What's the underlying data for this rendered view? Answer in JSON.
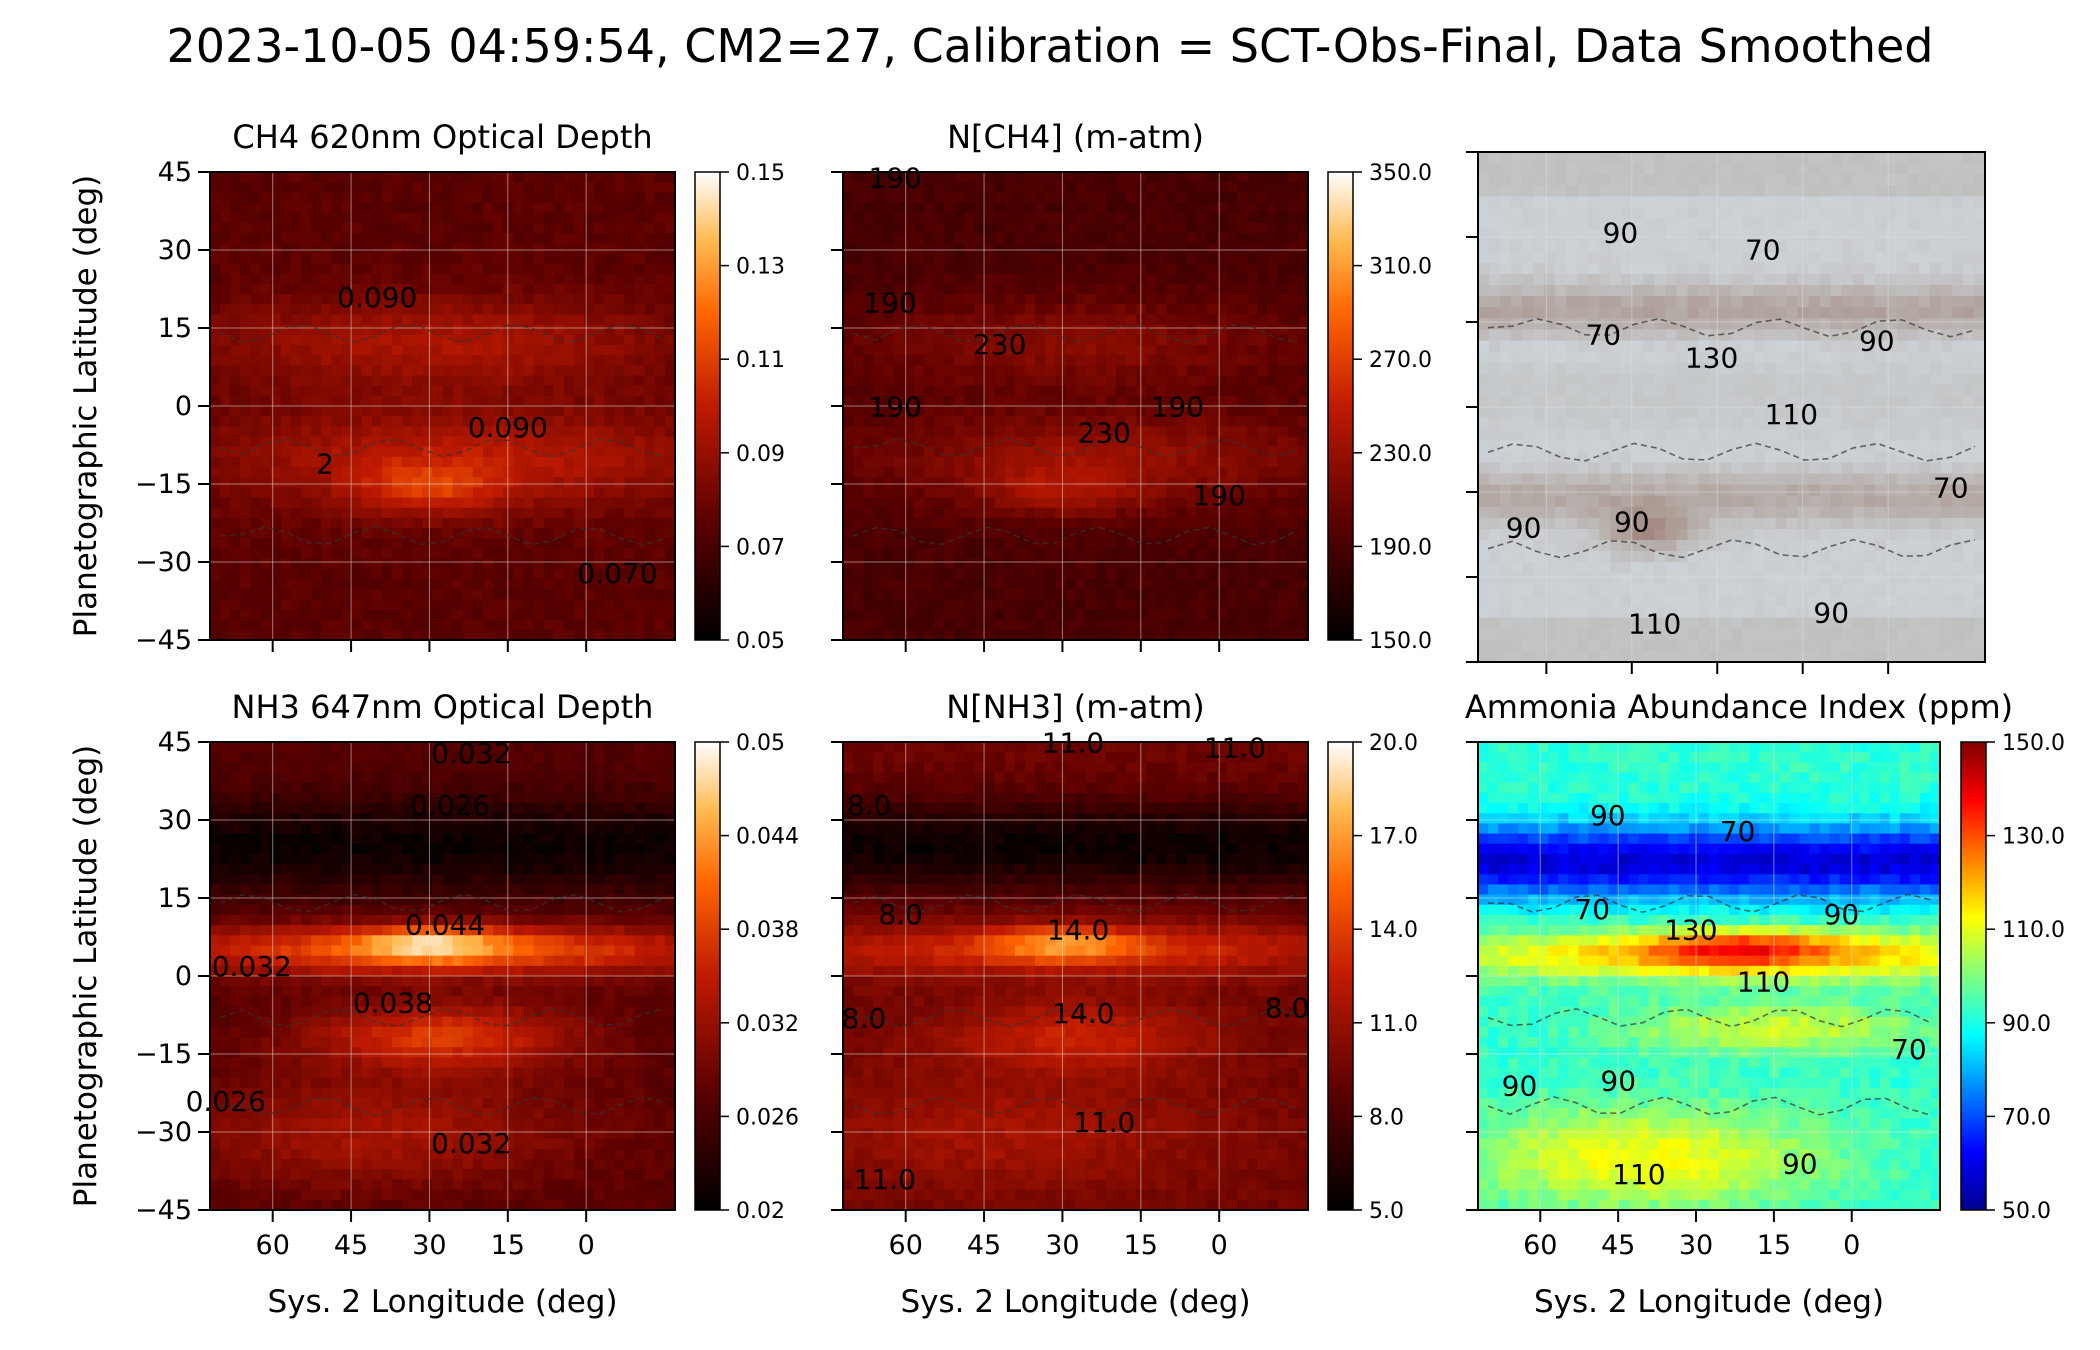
{
  "figure": {
    "title": "2023-10-05 04:59:54, CM2=27, Calibration = SCT-Obs-Final, Data Smoothed"
  },
  "chart_data": [
    {
      "type": "heatmap",
      "id": "ch4-od",
      "title": "CH4 620nm Optical Depth",
      "ylabel": "Planetographic Latitude (deg)",
      "xlabel": "",
      "x_ticks": [
        "60",
        "45",
        "30",
        "15",
        "0"
      ],
      "y_ticks": [
        "45",
        "30",
        "15",
        "0",
        "−15",
        "−30",
        "−45"
      ],
      "xlim": [
        72,
        -17
      ],
      "ylim": [
        -45,
        45
      ],
      "colormap": "gist_heat",
      "colorbar": {
        "min": 0.05,
        "max": 0.15,
        "ticks": [
          "0.15",
          "0.13",
          "0.11",
          "0.09",
          "0.07",
          "0.05"
        ]
      },
      "contour_labels": [
        {
          "text": "0.090",
          "lon": 40,
          "lat": 19
        },
        {
          "text": "0.090",
          "lon": 15,
          "lat": -6
        },
        {
          "text": "0.070",
          "lon": -6,
          "lat": -34
        },
        {
          "text": "2",
          "lon": 50,
          "lat": -13
        }
      ],
      "bands": [
        {
          "lat": 12,
          "width": 9,
          "lon_c": 28,
          "lon_w": 45,
          "val": 0.095
        },
        {
          "lat": -10,
          "width": 10,
          "lon_c": 22,
          "lon_w": 50,
          "val": 0.098
        },
        {
          "lat": -15,
          "width": 5,
          "lon_c": 30,
          "lon_w": 14,
          "val": 0.112
        }
      ],
      "base": 0.075
    },
    {
      "type": "heatmap",
      "id": "n-ch4",
      "title": "N[CH4] (m-atm)",
      "x_ticks": [
        "60",
        "45",
        "30",
        "15",
        "0"
      ],
      "xlim": [
        72,
        -17
      ],
      "ylim": [
        -45,
        45
      ],
      "colormap": "gist_heat",
      "colorbar": {
        "min": 150.0,
        "max": 350.0,
        "ticks": [
          "350.0",
          "310.0",
          "270.0",
          "230.0",
          "190.0",
          "150.0"
        ]
      },
      "contour_labels": [
        {
          "text": "190",
          "lon": 62,
          "lat": 42
        },
        {
          "text": "190",
          "lon": 63,
          "lat": 18
        },
        {
          "text": "230",
          "lon": 42,
          "lat": 10
        },
        {
          "text": "190",
          "lon": 62,
          "lat": -2
        },
        {
          "text": "230",
          "lon": 22,
          "lat": -7
        },
        {
          "text": "190",
          "lon": 8,
          "lat": -2
        },
        {
          "text": "190",
          "lon": 0,
          "lat": -19
        }
      ],
      "bands": [
        {
          "lat": 12,
          "width": 9,
          "lon_c": 28,
          "lon_w": 45,
          "val": 222
        },
        {
          "lat": -10,
          "width": 10,
          "lon_c": 22,
          "lon_w": 50,
          "val": 228
        },
        {
          "lat": -15,
          "width": 5,
          "lon_c": 30,
          "lon_w": 14,
          "val": 245
        }
      ],
      "base": 190
    },
    {
      "type": "image",
      "id": "rgb-context",
      "title": "",
      "contour_labels": [
        {
          "text": "90",
          "lon": 47,
          "lat": 29
        },
        {
          "text": "70",
          "lon": 22,
          "lat": 26
        },
        {
          "text": "70",
          "lon": 50,
          "lat": 11
        },
        {
          "text": "130",
          "lon": 31,
          "lat": 7
        },
        {
          "text": "90",
          "lon": 2,
          "lat": 10
        },
        {
          "text": "110",
          "lon": 17,
          "lat": -3
        },
        {
          "text": "70",
          "lon": -11,
          "lat": -16
        },
        {
          "text": "90",
          "lon": 64,
          "lat": -23
        },
        {
          "text": "90",
          "lon": 45,
          "lat": -22
        },
        {
          "text": "110",
          "lon": 41,
          "lat": -40
        },
        {
          "text": "90",
          "lon": 10,
          "lat": -38
        }
      ]
    },
    {
      "type": "heatmap",
      "id": "nh3-od",
      "title": "NH3 647nm Optical Depth",
      "ylabel": "Planetographic Latitude (deg)",
      "xlabel": "Sys. 2 Longitude (deg)",
      "x_ticks": [
        "60",
        "45",
        "30",
        "15",
        "0"
      ],
      "y_ticks": [
        "45",
        "30",
        "15",
        "0",
        "−15",
        "−30",
        "−45"
      ],
      "xlim": [
        72,
        -17
      ],
      "ylim": [
        -45,
        45
      ],
      "colormap": "gist_heat",
      "colorbar": {
        "min": 0.02,
        "max": 0.05,
        "ticks": [
          "0.05",
          "0.044",
          "0.038",
          "0.032",
          "0.026",
          "0.02"
        ]
      },
      "contour_labels": [
        {
          "text": "0.032",
          "lon": 22,
          "lat": 41
        },
        {
          "text": "0.026",
          "lon": 26,
          "lat": 31
        },
        {
          "text": "0.044",
          "lon": 27,
          "lat": 8
        },
        {
          "text": "0.032",
          "lon": 64,
          "lat": 0
        },
        {
          "text": "0.038",
          "lon": 37,
          "lat": -7
        },
        {
          "text": "0.026",
          "lon": 69,
          "lat": -26
        },
        {
          "text": "0.032",
          "lon": 22,
          "lat": -34
        }
      ],
      "bands": [
        {
          "lat": 5,
          "width": 5,
          "lon_c": 28,
          "lon_w": 60,
          "val": 0.04
        },
        {
          "lat": 6,
          "width": 3,
          "lon_c": 30,
          "lon_w": 14,
          "val": 0.049
        },
        {
          "lat": -12,
          "width": 7,
          "lon_c": 28,
          "lon_w": 25,
          "val": 0.038
        },
        {
          "lat": -30,
          "width": 11,
          "lon_c": 40,
          "lon_w": 40,
          "val": 0.033
        }
      ],
      "base": 0.027,
      "dark_band": {
        "lat": 25,
        "width": 9,
        "val": 0.021
      }
    },
    {
      "type": "heatmap",
      "id": "n-nh3",
      "title": "N[NH3] (m-atm)",
      "xlabel": "Sys. 2 Longitude (deg)",
      "x_ticks": [
        "60",
        "45",
        "30",
        "15",
        "0"
      ],
      "xlim": [
        72,
        -17
      ],
      "ylim": [
        -45,
        45
      ],
      "colormap": "gist_heat",
      "colorbar": {
        "min": 5.0,
        "max": 20.0,
        "ticks": [
          "20.0",
          "17.0",
          "14.0",
          "11.0",
          "8.0",
          "5.0"
        ]
      },
      "contour_labels": [
        {
          "text": "11.0",
          "lon": 28,
          "lat": 43
        },
        {
          "text": "11.0",
          "lon": -3,
          "lat": 42
        },
        {
          "text": "8.0",
          "lon": 67,
          "lat": 31
        },
        {
          "text": "8.0",
          "lon": 61,
          "lat": 10
        },
        {
          "text": "14.0",
          "lon": 27,
          "lat": 7
        },
        {
          "text": "8.0",
          "lon": 68,
          "lat": -10
        },
        {
          "text": "14.0",
          "lon": 26,
          "lat": -9
        },
        {
          "text": "11.0",
          "lon": 22,
          "lat": -30
        },
        {
          "text": "11.0",
          "lon": 64,
          "lat": -41
        },
        {
          "text": "8.0",
          "lon": -13,
          "lat": -8
        }
      ],
      "bands": [
        {
          "lat": 5,
          "width": 5,
          "lon_c": 28,
          "lon_w": 60,
          "val": 13.5
        },
        {
          "lat": 6,
          "width": 3,
          "lon_c": 30,
          "lon_w": 14,
          "val": 17.5
        },
        {
          "lat": -12,
          "width": 7,
          "lon_c": 28,
          "lon_w": 25,
          "val": 13.0
        },
        {
          "lat": -30,
          "width": 11,
          "lon_c": 40,
          "lon_w": 40,
          "val": 11.5
        }
      ],
      "base": 9.5,
      "dark_band": {
        "lat": 25,
        "width": 9,
        "val": 5.5
      }
    },
    {
      "type": "heatmap",
      "id": "ammonia-index",
      "title": "Ammonia Abundance Index (ppm)",
      "xlabel": "Sys. 2 Longitude (deg)",
      "x_ticks": [
        "60",
        "45",
        "30",
        "15",
        "0"
      ],
      "xlim": [
        72,
        -17
      ],
      "ylim": [
        -45,
        45
      ],
      "colormap": "jet",
      "colorbar": {
        "min": 50.0,
        "max": 150.0,
        "ticks": [
          "150.0",
          "130.0",
          "110.0",
          "90.0",
          "70.0",
          "50.0"
        ]
      },
      "contour_labels": [
        {
          "text": "90",
          "lon": 47,
          "lat": 29
        },
        {
          "text": "70",
          "lon": 22,
          "lat": 26
        },
        {
          "text": "70",
          "lon": 50,
          "lat": 11
        },
        {
          "text": "130",
          "lon": 31,
          "lat": 7
        },
        {
          "text": "90",
          "lon": 2,
          "lat": 10
        },
        {
          "text": "110",
          "lon": 17,
          "lat": -3
        },
        {
          "text": "70",
          "lon": -11,
          "lat": -16
        },
        {
          "text": "90",
          "lon": 64,
          "lat": -23
        },
        {
          "text": "90",
          "lon": 45,
          "lat": -22
        },
        {
          "text": "110",
          "lon": 41,
          "lat": -40
        },
        {
          "text": "90",
          "lon": 10,
          "lat": -38
        }
      ],
      "bands": [
        {
          "lat": 4,
          "width": 5,
          "lon_c": 20,
          "lon_w": 70,
          "val": 118
        },
        {
          "lat": 5,
          "width": 3,
          "lon_c": 22,
          "lon_w": 18,
          "val": 140
        },
        {
          "lat": -10,
          "width": 5,
          "lon_c": 15,
          "lon_w": 30,
          "val": 108
        },
        {
          "lat": -35,
          "width": 10,
          "lon_c": 40,
          "lon_w": 35,
          "val": 112
        }
      ],
      "base": 92,
      "dark_band": {
        "lat": 22,
        "width": 7,
        "val": 58
      }
    }
  ]
}
